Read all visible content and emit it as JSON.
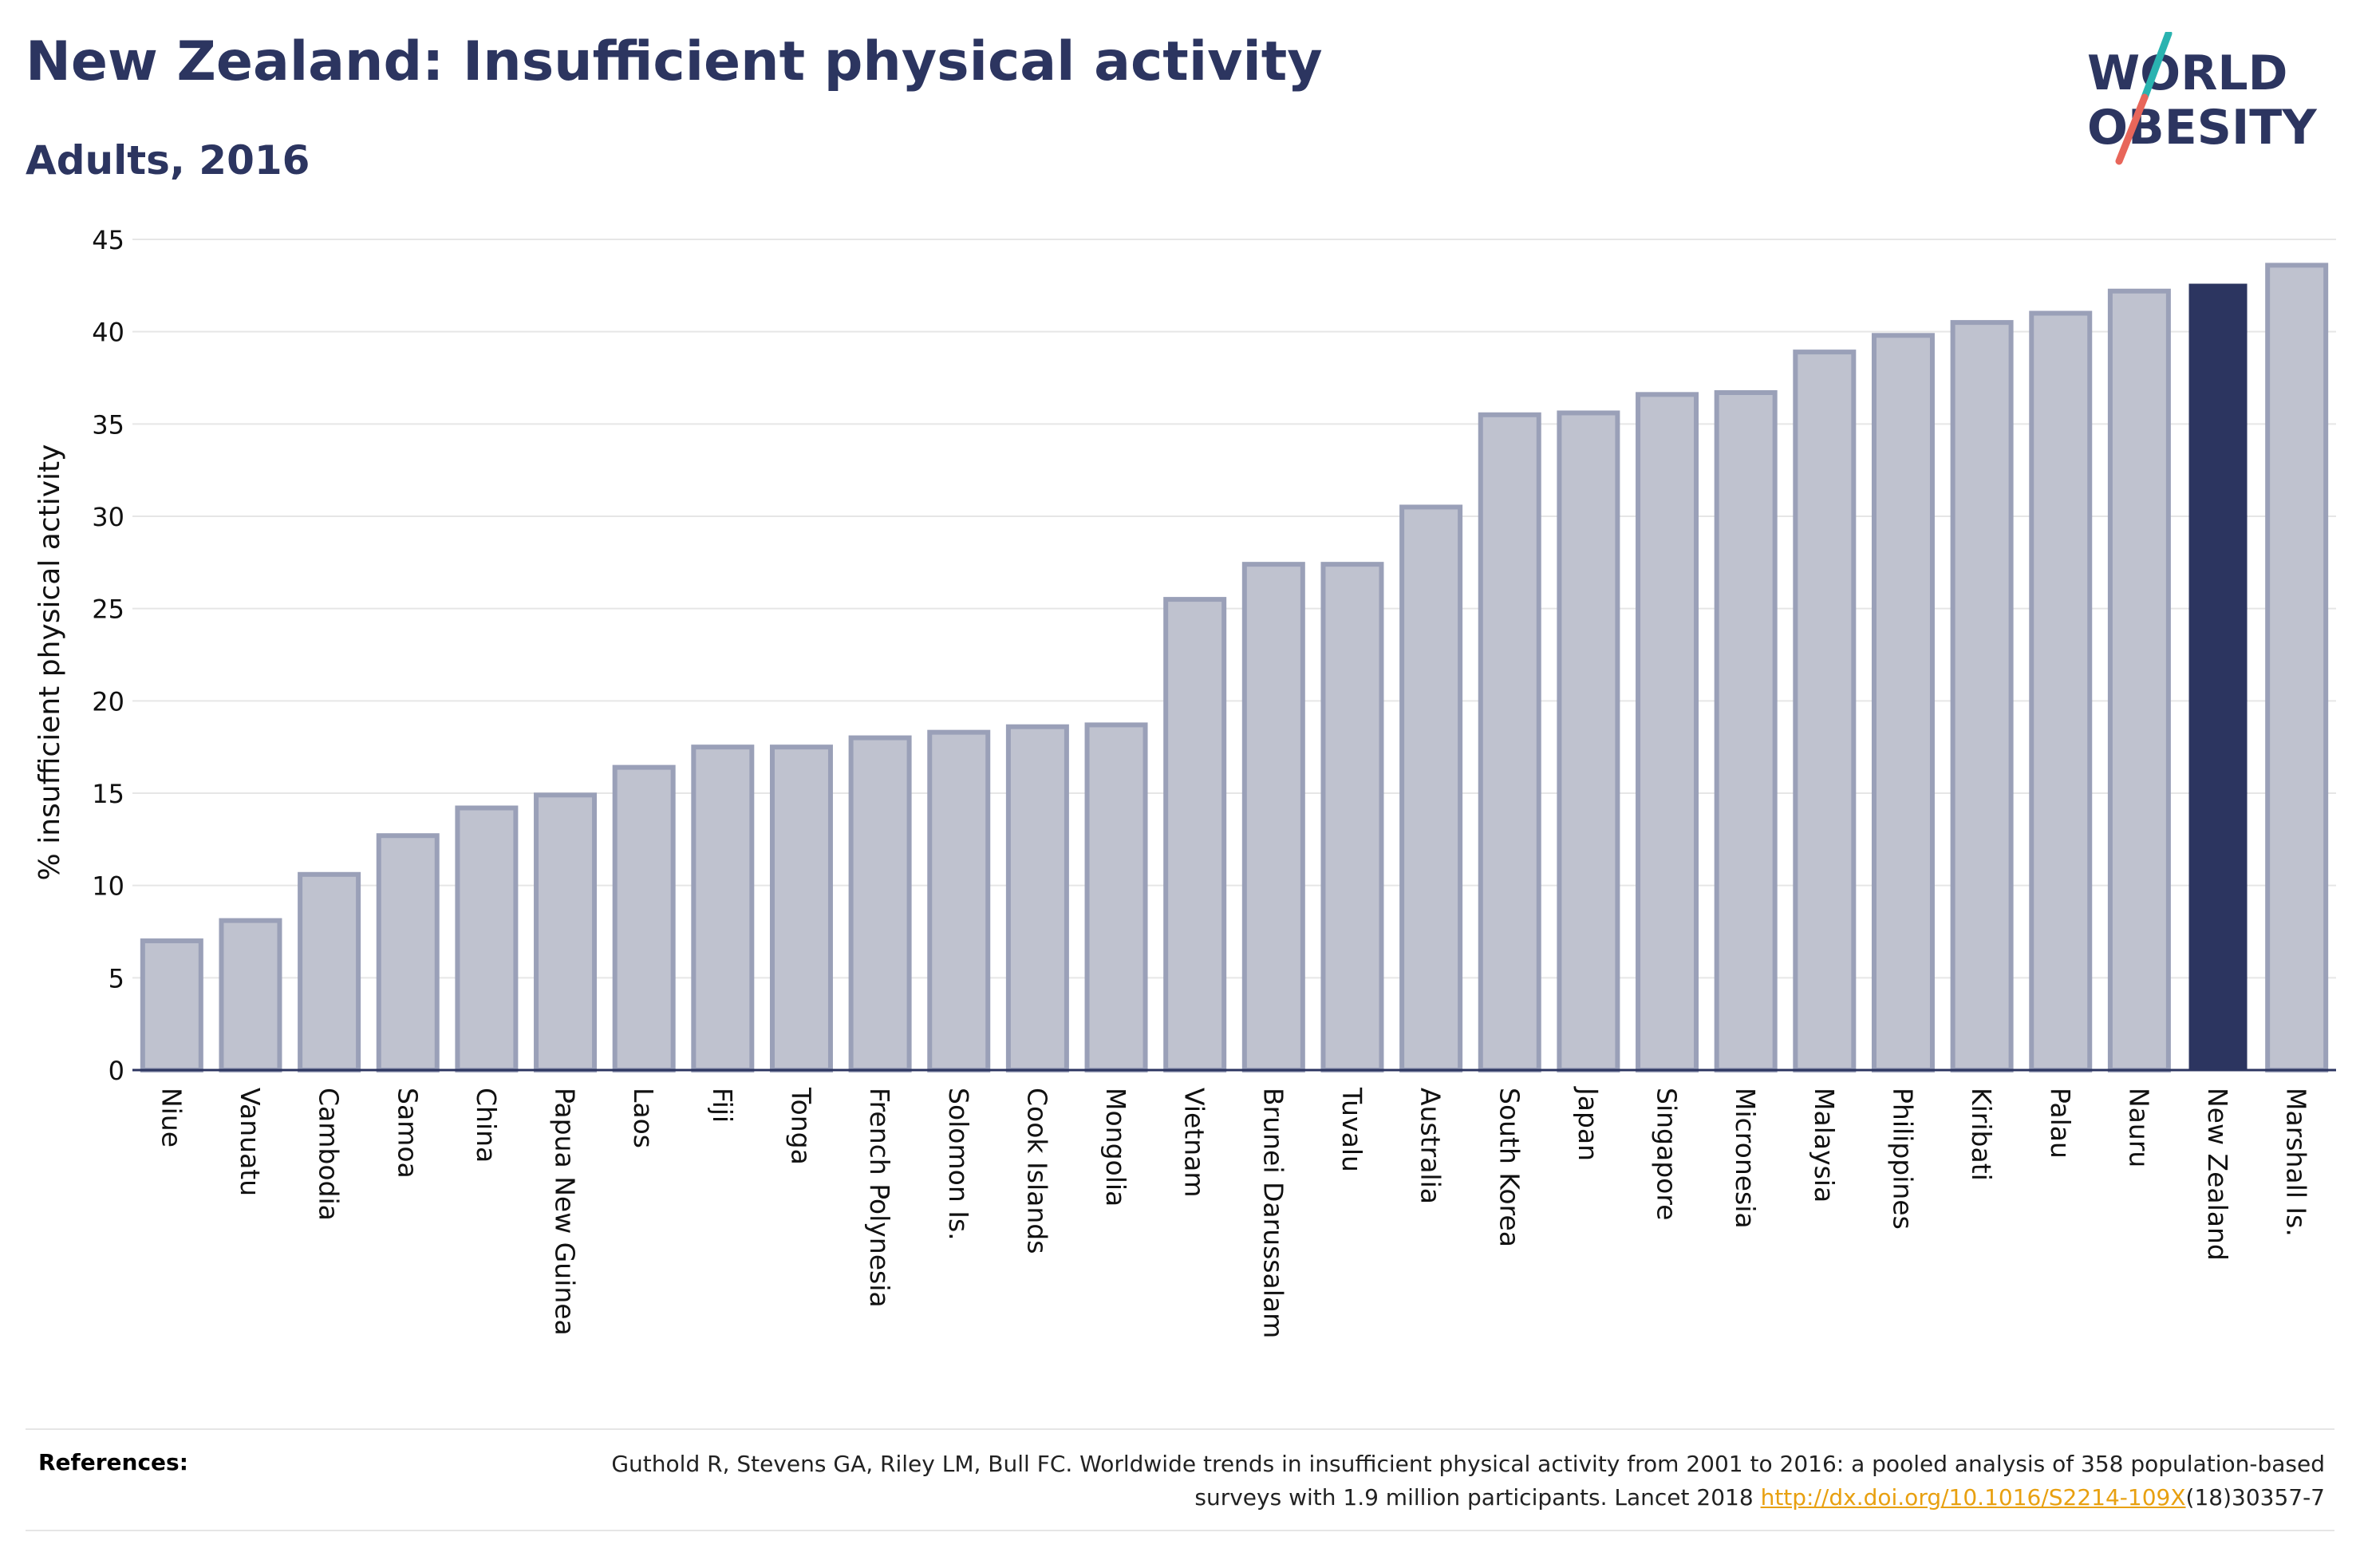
{
  "header": {
    "title": "New Zealand: Insufficient physical activity",
    "subtitle": "Adults, 2016"
  },
  "logo": {
    "line1": "WORLD",
    "line2": "OBESITY",
    "text_color": "#2c3560",
    "slash_colors": [
      "#2ab3b0",
      "#e8665a"
    ]
  },
  "chart_data": {
    "type": "bar",
    "title": "",
    "xlabel": "",
    "ylabel": "% insufficient physical activity",
    "ylim": [
      0,
      45
    ],
    "yticks": [
      0,
      5,
      10,
      15,
      20,
      25,
      30,
      35,
      40,
      45
    ],
    "grid": true,
    "categories": [
      "Niue",
      "Vanuatu",
      "Cambodia",
      "Samoa",
      "China",
      "Papua New Guinea",
      "Laos",
      "Fiji",
      "Tonga",
      "French Polynesia",
      "Solomon Is.",
      "Cook Islands",
      "Mongolia",
      "Vietnam",
      "Brunei Darussalam",
      "Tuvalu",
      "Australia",
      "South Korea",
      "Japan",
      "Singapore",
      "Micronesia",
      "Malaysia",
      "Philippines",
      "Kiribati",
      "Palau",
      "Nauru",
      "New Zealand",
      "Marshall Is."
    ],
    "values": [
      7.0,
      8.1,
      10.6,
      12.7,
      14.2,
      14.9,
      16.4,
      17.5,
      17.5,
      18.0,
      18.3,
      18.6,
      18.7,
      25.5,
      27.4,
      27.4,
      30.5,
      35.5,
      35.6,
      36.6,
      36.7,
      38.9,
      39.8,
      40.5,
      41.0,
      42.2,
      42.6,
      43.6
    ],
    "highlight": "New Zealand",
    "colors": {
      "bar_fill": "#bfc2cf",
      "bar_stroke": "#9aa0b8",
      "highlight_fill": "#2c3560",
      "axis": "#2c3560",
      "grid": "#e6e6e6"
    }
  },
  "references": {
    "label": "References:",
    "text": "Guthold R, Stevens GA, Riley LM, Bull FC. Worldwide trends in insufficient physical activity from 2001 to 2016: a pooled analysis of 358 population-based surveys with 1.9 million participants. Lancet 2018",
    "link_text": "http://dx.doi.org/10.1016/S2214-109X",
    "link_suffix": "(18)30357-7",
    "link_color": "#e8a010"
  }
}
